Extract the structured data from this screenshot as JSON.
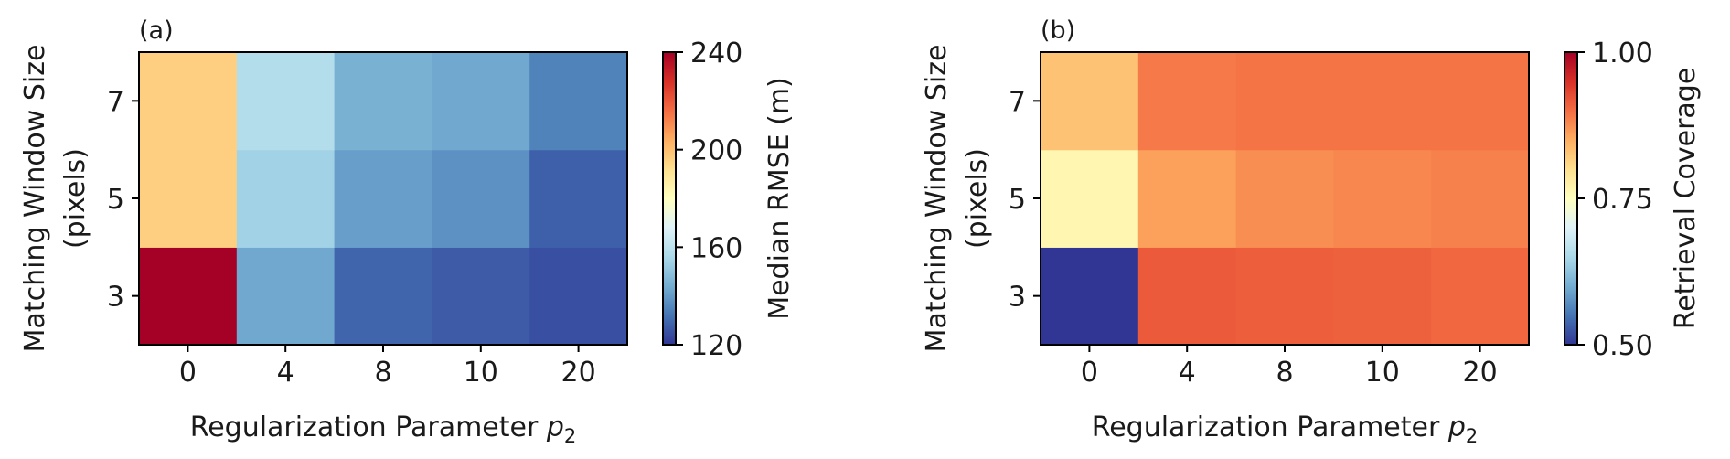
{
  "chart_data": [
    {
      "type": "heatmap",
      "panel_label": "(a)",
      "xlabel": "Regularization Parameter p",
      "xlabel_subscript": "2",
      "ylabel_line1": "Matching Window Size",
      "ylabel_line2": "(pixels)",
      "x_categories": [
        "0",
        "4",
        "8",
        "10",
        "20"
      ],
      "y_categories": [
        "3",
        "5",
        "7"
      ],
      "values": [
        [
          240,
          143,
          129,
          127,
          125
        ],
        [
          196,
          154,
          141,
          138,
          128
        ],
        [
          196,
          158,
          145,
          143,
          135
        ]
      ],
      "colorbar": {
        "label": "Median RMSE (m)",
        "range": [
          120,
          240
        ],
        "ticks": [
          "120",
          "160",
          "200",
          "240"
        ],
        "tick_values": [
          120,
          160,
          200,
          240
        ]
      },
      "colormap": "RdYlBu_r"
    },
    {
      "type": "heatmap",
      "panel_label": "(b)",
      "xlabel": "Regularization Parameter p",
      "xlabel_subscript": "2",
      "ylabel_line1": "Matching Window Size",
      "ylabel_line2": "(pixels)",
      "x_categories": [
        "0",
        "4",
        "8",
        "10",
        "20"
      ],
      "y_categories": [
        "3",
        "5",
        "7"
      ],
      "values": [
        [
          0.5,
          0.915,
          0.912,
          0.91,
          0.905
        ],
        [
          0.765,
          0.86,
          0.875,
          0.88,
          0.885
        ],
        [
          0.83,
          0.89,
          0.895,
          0.895,
          0.895
        ]
      ],
      "colorbar": {
        "label": "Retrieval Coverage",
        "range": [
          0.5,
          1.0
        ],
        "ticks": [
          "0.50",
          "0.75",
          "1.00"
        ],
        "tick_values": [
          0.5,
          0.75,
          1.0
        ]
      },
      "colormap": "RdYlBu_r"
    }
  ]
}
